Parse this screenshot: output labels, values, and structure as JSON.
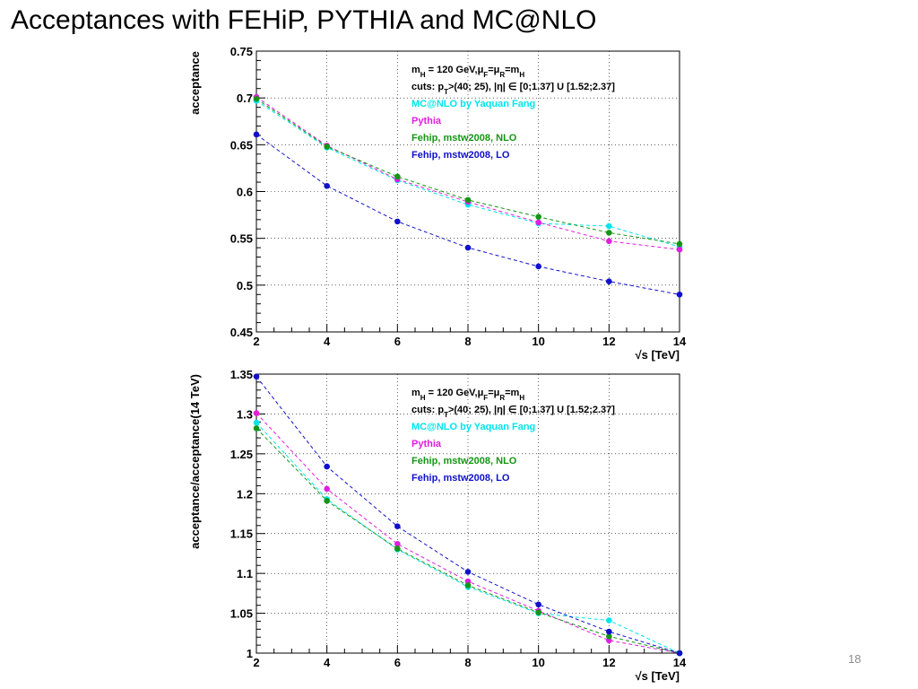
{
  "slide": {
    "title": "Acceptances with FEHiP, PYTHIA and MC@NLO",
    "page_number": "18"
  },
  "chart_data": [
    {
      "type": "line",
      "id": "top",
      "x": [
        2,
        4,
        6,
        8,
        10,
        12,
        14
      ],
      "xlim": [
        2,
        14
      ],
      "ylim": [
        0.45,
        0.75
      ],
      "x_ticks": [
        2,
        4,
        6,
        8,
        10,
        12,
        14
      ],
      "y_ticks": [
        0.45,
        0.5,
        0.55,
        0.6,
        0.65,
        0.7,
        0.75
      ],
      "y_tick_labels": [
        "0.45",
        "0.5",
        "0.55",
        "0.6",
        "0.65",
        "0.7",
        "0.75"
      ],
      "xlabel": "√s [TeV]",
      "ylabel": "acceptance",
      "grid": true,
      "legend_position": "top-right",
      "info_lines": [
        {
          "text": "m_H = 120 GeV,μ_F=μ_R=m_H",
          "color": "#000000"
        },
        {
          "text": "cuts: p_T>(40; 25), |η| ∈ [0;1.37] U [1.52;2.37]",
          "color": "#000000"
        }
      ],
      "series": [
        {
          "name": "MC@NLO by Yaquan Fang",
          "color": "#00e5ee",
          "values": [
            0.697,
            0.647,
            0.612,
            0.586,
            0.566,
            0.563,
            0.541
          ]
        },
        {
          "name": "Pythia",
          "color": "#e01ee0",
          "values": [
            0.701,
            0.649,
            0.613,
            0.589,
            0.567,
            0.547,
            0.538
          ]
        },
        {
          "name": "Fehip, mstw2008, NLO",
          "color": "#149614",
          "values": [
            0.699,
            0.648,
            0.616,
            0.591,
            0.573,
            0.556,
            0.544
          ]
        },
        {
          "name": "Fehip, mstw2008, LO",
          "color": "#1010cc",
          "values": [
            0.661,
            0.606,
            0.568,
            0.54,
            0.52,
            0.504,
            0.49
          ]
        }
      ]
    },
    {
      "type": "line",
      "id": "bottom",
      "x": [
        2,
        4,
        6,
        8,
        10,
        12,
        14
      ],
      "xlim": [
        2,
        14
      ],
      "ylim": [
        1.0,
        1.35
      ],
      "x_ticks": [
        2,
        4,
        6,
        8,
        10,
        12,
        14
      ],
      "y_ticks": [
        1.0,
        1.05,
        1.1,
        1.15,
        1.2,
        1.25,
        1.3,
        1.35
      ],
      "y_tick_labels": [
        "1",
        "1.05",
        "1.1",
        "1.15",
        "1.2",
        "1.25",
        "1.3",
        "1.35"
      ],
      "xlabel": "√s [TeV]",
      "ylabel": "acceptance/acceptance(14 TeV)",
      "grid": true,
      "legend_position": "top-right",
      "info_lines": [
        {
          "text": "m_H = 120 GeV,μ_F=μ_R=m_H",
          "color": "#000000"
        },
        {
          "text": "cuts: p_T>(40; 25), |η| ∈ [0;1.37] U [1.52;2.37]",
          "color": "#000000"
        }
      ],
      "series": [
        {
          "name": "MC@NLO by Yaquan Fang",
          "color": "#00e5ee",
          "values": [
            1.289,
            1.193,
            1.13,
            1.083,
            1.05,
            1.041,
            1.0
          ]
        },
        {
          "name": "Pythia",
          "color": "#e01ee0",
          "values": [
            1.301,
            1.206,
            1.137,
            1.09,
            1.053,
            1.016,
            1.0
          ]
        },
        {
          "name": "Fehip, mstw2008, NLO",
          "color": "#149614",
          "values": [
            1.282,
            1.191,
            1.131,
            1.085,
            1.051,
            1.021,
            1.0
          ]
        },
        {
          "name": "Fehip, mstw2008, LO",
          "color": "#1010cc",
          "values": [
            1.347,
            1.234,
            1.159,
            1.102,
            1.061,
            1.027,
            1.0
          ]
        }
      ]
    }
  ]
}
